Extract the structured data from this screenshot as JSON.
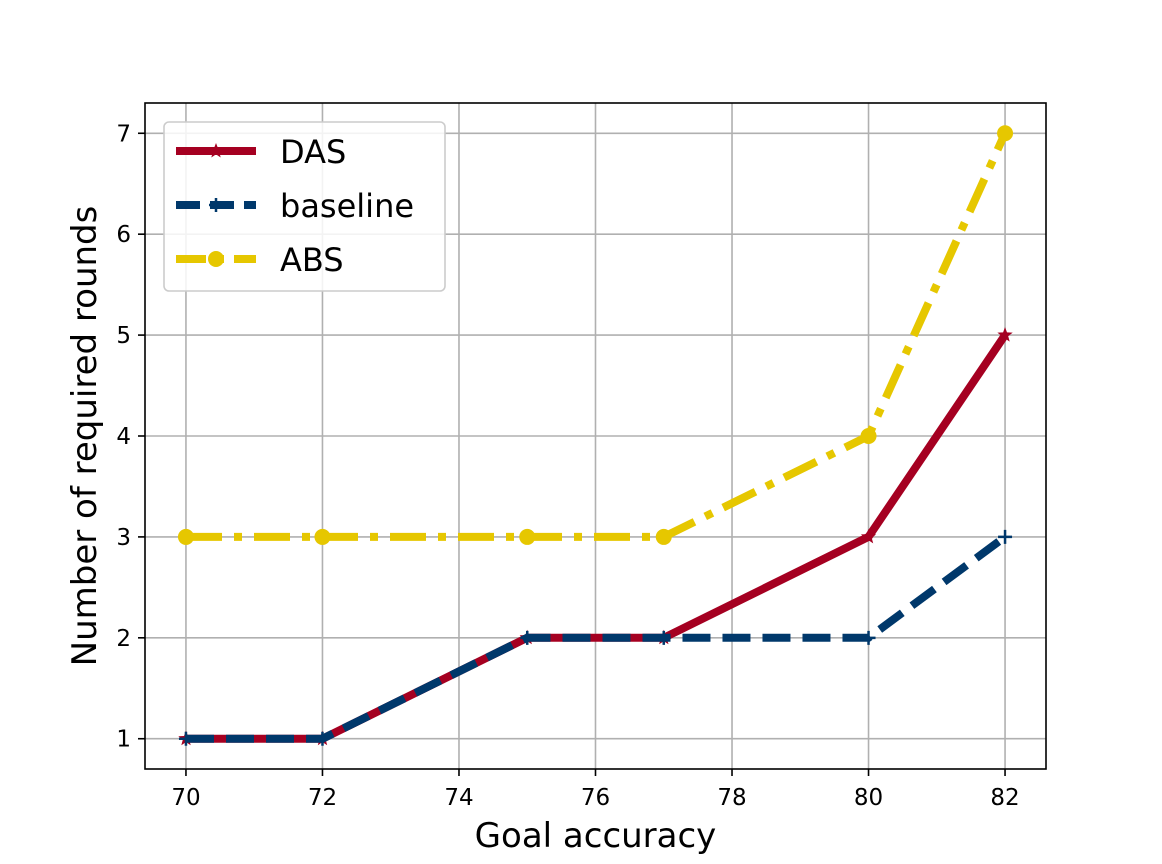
{
  "chart_data": {
    "type": "line",
    "title": "",
    "xlabel": "Goal accuracy",
    "ylabel": "Number of required rounds",
    "xlim": [
      69.4,
      82.6
    ],
    "ylim": [
      0.7,
      7.3
    ],
    "x_ticks": [
      70,
      72,
      74,
      76,
      78,
      80,
      82
    ],
    "y_ticks": [
      1,
      2,
      3,
      4,
      5,
      6,
      7
    ],
    "grid": true,
    "legend_position": "top-left",
    "x": [
      70,
      72,
      75,
      77,
      80,
      82
    ],
    "series": [
      {
        "name": "DAS",
        "values": [
          1,
          1,
          2,
          2,
          3,
          5
        ],
        "color": "#a50021",
        "line_style": "solid",
        "marker": "star"
      },
      {
        "name": "baseline",
        "values": [
          1,
          1,
          2,
          2,
          2,
          3
        ],
        "color": "#00386b",
        "line_style": "dashed",
        "marker": "plus"
      },
      {
        "name": "ABS",
        "values": [
          3,
          3,
          3,
          3,
          4,
          7
        ],
        "color": "#e6c700",
        "line_style": "dashdot",
        "marker": "circle"
      }
    ]
  }
}
